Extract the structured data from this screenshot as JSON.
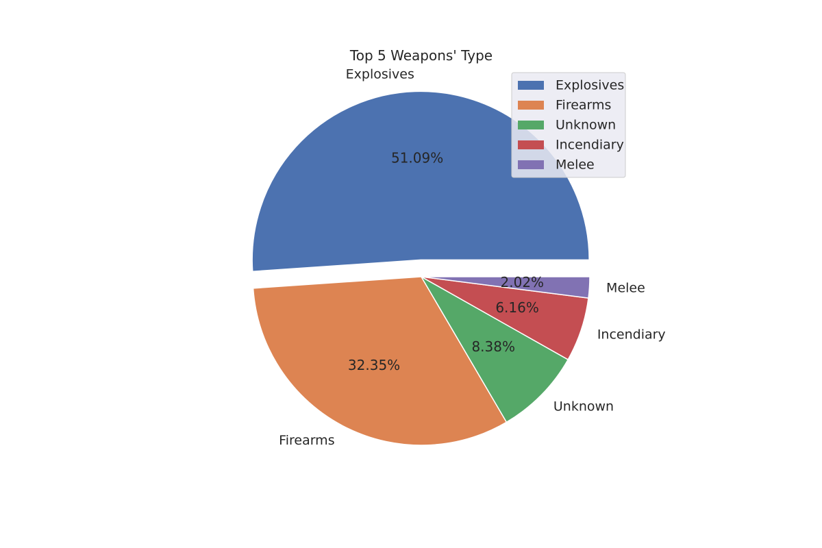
{
  "chart_data": {
    "type": "pie",
    "title": "Top 5 Weapons' Type",
    "slices": [
      {
        "label": "Explosives",
        "value": 51.09,
        "pct_label": "51.09%",
        "color": "#4c72b0",
        "exploded": true
      },
      {
        "label": "Firearms",
        "value": 32.35,
        "pct_label": "32.35%",
        "color": "#dd8452",
        "exploded": false
      },
      {
        "label": "Unknown",
        "value": 8.38,
        "pct_label": "8.38%",
        "color": "#55a868",
        "exploded": false
      },
      {
        "label": "Incendiary",
        "value": 6.16,
        "pct_label": "6.16%",
        "color": "#c44e52",
        "exploded": false
      },
      {
        "label": "Melee",
        "value": 2.02,
        "pct_label": "2.02%",
        "color": "#8172b3",
        "exploded": false
      }
    ],
    "start_angle_deg": 0,
    "direction": "counterclockwise",
    "legend": {
      "placement": "top-right",
      "entries": [
        "Explosives",
        "Firearms",
        "Unknown",
        "Incendiary",
        "Melee"
      ],
      "background": "#eaeaf2"
    }
  }
}
